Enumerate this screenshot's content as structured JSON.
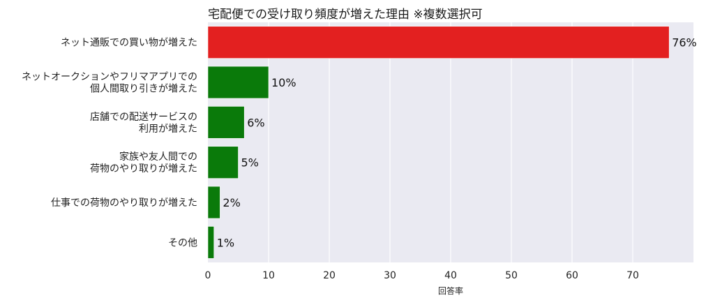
{
  "chart_data": {
    "type": "bar",
    "orientation": "horizontal",
    "title": "宅配便での受け取り頻度が増えた理由 ※複数選択可",
    "xlabel": "回答率",
    "ylabel": "",
    "xlim": [
      0,
      80
    ],
    "xticks": [
      0,
      10,
      20,
      30,
      40,
      50,
      60,
      70
    ],
    "grid": true,
    "categories": [
      [
        "ネット通販での買い物が増えた"
      ],
      [
        "ネットオークションやフリマアプリでの",
        "個人間取り引きが増えた"
      ],
      [
        "店舗での配送サービスの",
        "利用が増えた"
      ],
      [
        "家族や友人間での",
        "荷物のやり取りが増えた"
      ],
      [
        "仕事での荷物のやり取りが増えた"
      ],
      [
        "その他"
      ]
    ],
    "values": [
      76,
      10,
      6,
      5,
      2,
      1
    ],
    "value_labels": [
      "76%",
      "10%",
      "6%",
      "5%",
      "2%",
      "1%"
    ],
    "bar_colors": [
      "#e32020",
      "#0a7a0a",
      "#0a7a0a",
      "#0a7a0a",
      "#0a7a0a",
      "#0a7a0a"
    ],
    "plot_background": "#eaeaf2",
    "grid_color": "#ffffff"
  }
}
